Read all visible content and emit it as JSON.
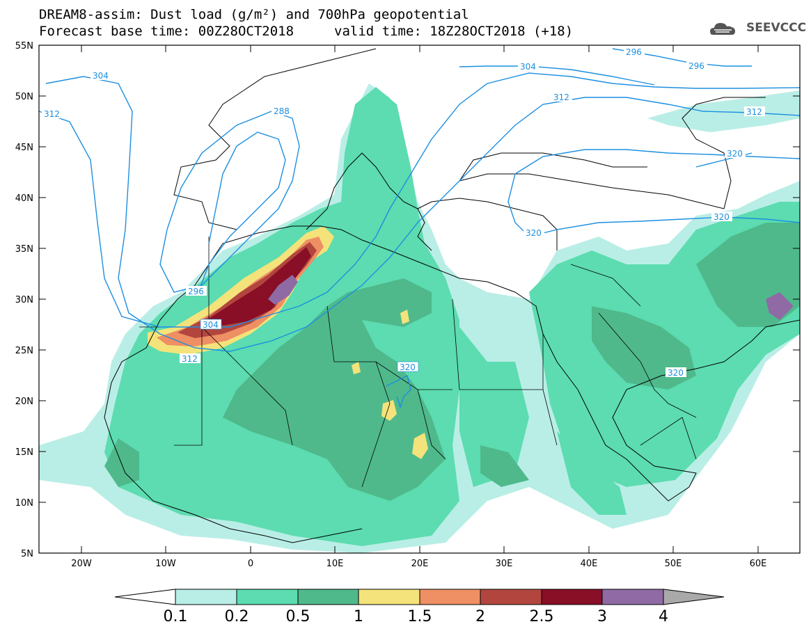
{
  "header": {
    "title_line1": "DREAM8-assim: Dust load (g/m²) and 700hPa geopotential",
    "title_line2_left": "Forecast base time: 00Z28OCT2018",
    "title_line2_right": "valid time: 18Z28OCT2018 (+18)",
    "logo_text": "SEEVCCC"
  },
  "axes": {
    "lat_labels": [
      "55N",
      "50N",
      "45N",
      "40N",
      "35N",
      "30N",
      "25N",
      "20N",
      "15N",
      "10N",
      "5N"
    ],
    "lon_labels": [
      "20W",
      "10W",
      "0",
      "10E",
      "20E",
      "30E",
      "40E",
      "50E",
      "60E"
    ]
  },
  "contours": {
    "labels": [
      "304",
      "312",
      "288",
      "296",
      "304",
      "312",
      "296",
      "312",
      "320",
      "320",
      "296",
      "304",
      "312",
      "320",
      "320",
      "320"
    ]
  },
  "colorbar": {
    "levels": [
      "0.1",
      "0.2",
      "0.5",
      "1",
      "1.5",
      "2",
      "2.5",
      "3",
      "4"
    ],
    "colors": [
      "#b9eee6",
      "#5cdcb0",
      "#4fb98c",
      "#f4e37a",
      "#ee8f64",
      "#b2463e",
      "#880f26",
      "#8f6aa4",
      "#a9a9a9"
    ]
  },
  "colors": {
    "contour": "#1c8fe0",
    "ocean": "#ffffff",
    "frame": "#000000"
  }
}
